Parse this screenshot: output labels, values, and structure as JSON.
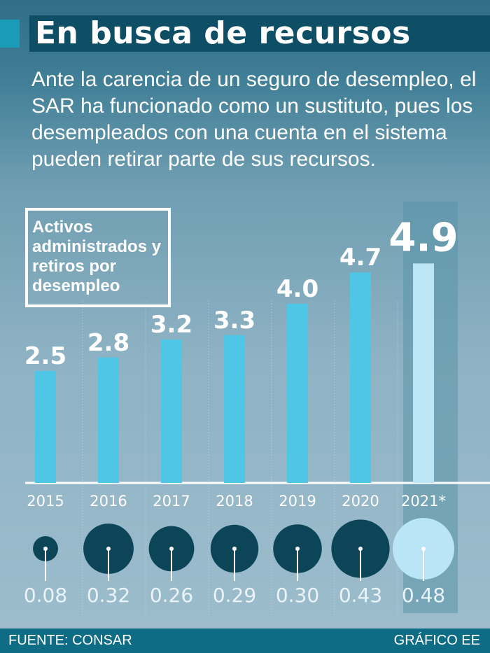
{
  "title": "En busca de recursos",
  "subtitle": "Ante la carencia de un seguro de desempleo, el SAR ha funcionado como un sustituto, pues los desempleados con una cuenta en el sistema pueden retirar parte de sus recursos.",
  "legend_label": "Activos administrados y retiros por desempleo",
  "colors": {
    "bar": "#4fc6e6",
    "bar_highlight": "#bde6f5",
    "circle": "#0c4558",
    "circle_highlight": "#b9e5f7",
    "title_bg": "#0e4f66",
    "footer_bg": "#0e6d84"
  },
  "chart_data": {
    "type": "bar",
    "title": "Activos administrados y retiros por desempleo",
    "categories": [
      "2015",
      "2016",
      "2017",
      "2018",
      "2019",
      "2020",
      "2021*"
    ],
    "series": [
      {
        "name": "Activos administrados",
        "values": [
          2.5,
          2.8,
          3.2,
          3.3,
          4.0,
          4.7,
          4.9
        ],
        "labels": [
          "2.5",
          "2.8",
          "3.2",
          "3.3",
          "4.0",
          "4.7",
          "4.9"
        ]
      },
      {
        "name": "Retiros por desempleo",
        "values": [
          0.08,
          0.32,
          0.26,
          0.29,
          0.3,
          0.43,
          0.48
        ],
        "labels": [
          "0.08",
          "0.32",
          "0.26",
          "0.29",
          "0.30",
          "0.43",
          "0.48"
        ]
      }
    ],
    "highlight_index": 6,
    "ylim": [
      0,
      5
    ],
    "xlabel": "",
    "ylabel": ""
  },
  "footer": {
    "source": "FUENTE: CONSAR",
    "credit": "GRÁFICO EE"
  }
}
